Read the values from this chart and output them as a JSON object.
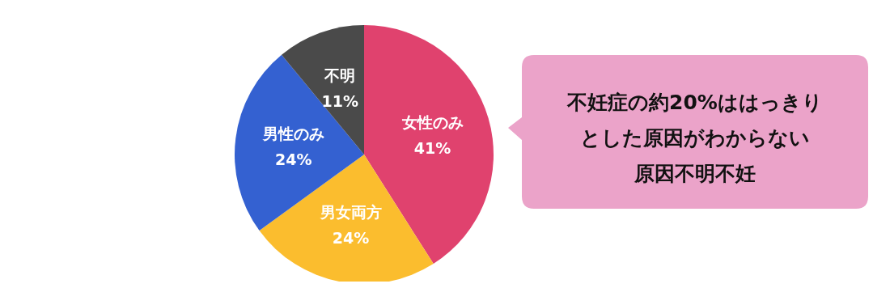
{
  "chart_data": {
    "type": "pie",
    "categories": [
      "女性のみ",
      "男女両方",
      "男性のみ",
      "不明"
    ],
    "values": [
      41,
      24,
      24,
      11
    ],
    "colors": [
      "#e0426e",
      "#fbbd2e",
      "#3461d1",
      "#4a4a4a"
    ],
    "value_labels": [
      "41%",
      "24%",
      "24%",
      "11%"
    ],
    "annotations": [
      "不妊症の約20%ははっきりとした原因がわからない原因不明不妊"
    ]
  }
}
